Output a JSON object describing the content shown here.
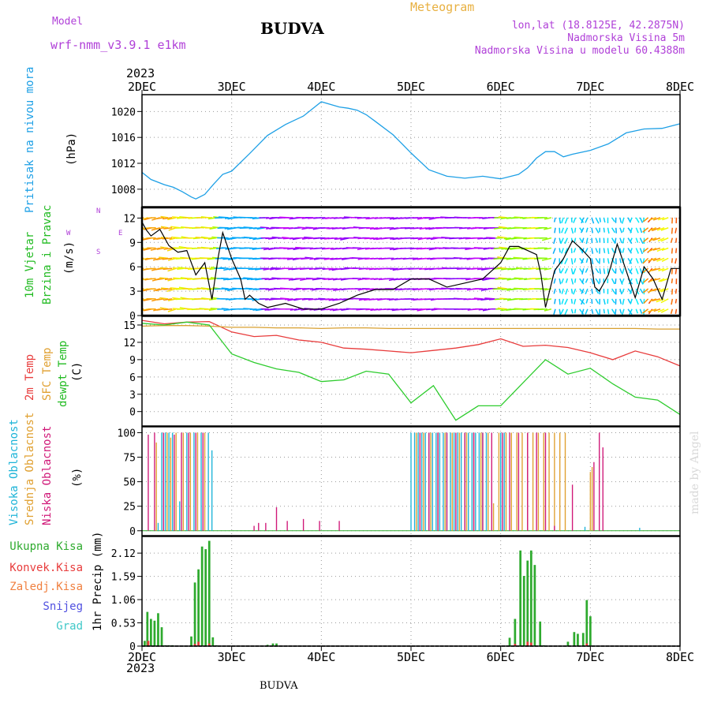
{
  "header": {
    "model_label": "Model",
    "model_name": "wrf-nmm_v3.9.1  e1km",
    "station": "BUDVA",
    "meteogram": "Meteogram",
    "lonlat": "lon,lat (18.8125E, 42.2875N)",
    "elevation": "Nadmorska Visina 5m",
    "model_elevation": "Nadmorska Visina u modelu 60.4388m",
    "year": "2023",
    "footer_station": "BUDVA",
    "watermark": "made by Angel"
  },
  "x_axis": {
    "ticks": [
      "2DEC",
      "3DEC",
      "4DEC",
      "5DEC",
      "6DEC",
      "7DEC",
      "8DEC"
    ],
    "year_bottom": "2023"
  },
  "colors": {
    "pressure": "#1ea0e6",
    "temp2m": "#e83c3c",
    "sfc_temp": "#d8a030",
    "dewpoint": "#2ecc2e",
    "high_cloud": "#1eb4d8",
    "mid_cloud": "#e0a030",
    "low_cloud": "#d01878",
    "total_precip": "#2eaa2e",
    "conv_precip": "#e83c3c"
  },
  "panels": {
    "pressure": {
      "label": "Pritisak na nivou mora",
      "unit": "(hPa)"
    },
    "wind": {
      "label1": "10m Vjetar",
      "label2": "Brzina i Pravac",
      "unit": "(m/s)",
      "compass_n": "N",
      "compass_s": "S",
      "compass_w": "W",
      "compass_e": "E"
    },
    "temp": {
      "label1": "2m Temp",
      "label2": "SFC Temp",
      "label3": "dewpt Temp",
      "unit": "(C)"
    },
    "cloud": {
      "label1": "Visoka Oblacnost",
      "label2": "Srednja Oblacnost",
      "label3": "Niska Oblacnost",
      "unit": "(%)"
    },
    "precip": {
      "unit": "1hr Precip (mm)",
      "legend": [
        "Ukupna Kisa",
        "Konvek.Kisa",
        "Zaledj.Kisa",
        "Snijeg",
        "Grad"
      ]
    }
  },
  "chart_data": [
    {
      "type": "line",
      "name": "pressure",
      "ylabel": "Pritisak na nivou mora (hPa)",
      "ylim": [
        1005.3,
        1022.6
      ],
      "yticks": [
        1008,
        1012,
        1016,
        1020
      ],
      "x": [
        0,
        0.1,
        0.25,
        0.35,
        0.45,
        0.55,
        0.6,
        0.7,
        0.8,
        0.9,
        1.0,
        1.2,
        1.4,
        1.6,
        1.8,
        2.0,
        2.2,
        2.3,
        2.4,
        2.5,
        2.6,
        2.8,
        3.0,
        3.2,
        3.4,
        3.6,
        3.8,
        4.0,
        4.2,
        4.3,
        4.4,
        4.5,
        4.6,
        4.7,
        4.8,
        5.0,
        5.2,
        5.4,
        5.6,
        5.8,
        6.0
      ],
      "values": [
        1010.6,
        1009.5,
        1008.7,
        1008.3,
        1007.6,
        1006.8,
        1006.5,
        1007.2,
        1008.8,
        1010.3,
        1010.8,
        1013.5,
        1016.3,
        1018.0,
        1019.3,
        1021.5,
        1020.7,
        1020.5,
        1020.2,
        1019.5,
        1018.5,
        1016.4,
        1013.6,
        1011.0,
        1010.0,
        1009.7,
        1010.0,
        1009.6,
        1010.3,
        1011.3,
        1012.8,
        1013.8,
        1013.8,
        1013.0,
        1013.4,
        1014.0,
        1015.0,
        1016.7,
        1017.3,
        1017.4,
        1018.1
      ]
    },
    {
      "type": "line",
      "name": "wind",
      "ylabel": "10m Vjetar Brzina i Pravac (m/s)",
      "ylim": [
        0,
        13.3
      ],
      "yticks": [
        0,
        3,
        6,
        9,
        12
      ],
      "x": [
        0,
        0.05,
        0.1,
        0.2,
        0.3,
        0.4,
        0.5,
        0.6,
        0.7,
        0.78,
        0.85,
        0.9,
        1.0,
        1.1,
        1.15,
        1.2,
        1.3,
        1.4,
        1.6,
        1.8,
        2.0,
        2.2,
        2.4,
        2.6,
        2.8,
        3.0,
        3.2,
        3.4,
        3.6,
        3.8,
        4.0,
        4.1,
        4.2,
        4.3,
        4.4,
        4.45,
        4.5,
        4.6,
        4.7,
        4.8,
        4.9,
        5.0,
        5.05,
        5.1,
        5.2,
        5.3,
        5.4,
        5.5,
        5.6,
        5.7,
        5.8,
        5.9,
        6.0
      ],
      "values": [
        11.5,
        10.5,
        9.8,
        10.6,
        8.6,
        7.8,
        8.0,
        5.0,
        6.5,
        2.0,
        7.2,
        10.2,
        7.0,
        4.5,
        2.0,
        2.5,
        1.5,
        1.0,
        1.5,
        0.8,
        0.8,
        1.5,
        2.5,
        3.2,
        3.2,
        4.5,
        4.5,
        3.5,
        4.0,
        4.5,
        6.5,
        8.5,
        8.5,
        8.0,
        7.5,
        5.0,
        1.0,
        5.5,
        7.0,
        9.2,
        8.2,
        7.0,
        3.5,
        3.0,
        5.0,
        8.8,
        5.5,
        2.2,
        6.0,
        4.5,
        2.0,
        5.8,
        5.8
      ]
    },
    {
      "type": "line",
      "name": "temperature",
      "ylabel": "2m Temp, SFC Temp, dewpt Temp (C)",
      "ylim": [
        -2.5,
        16.5
      ],
      "yticks": [
        0,
        3,
        6,
        9,
        12,
        15
      ],
      "x": [
        0,
        0.25,
        0.5,
        0.75,
        1.0,
        1.25,
        1.5,
        1.75,
        2.0,
        2.25,
        2.5,
        2.75,
        3.0,
        3.25,
        3.5,
        3.75,
        4.0,
        4.25,
        4.5,
        4.75,
        5.0,
        5.25,
        5.5,
        5.75,
        6.0
      ],
      "series": [
        {
          "name": "2m Temp",
          "values": [
            15.8,
            15.2,
            15.5,
            15.6,
            13.8,
            13.0,
            13.2,
            12.4,
            12.0,
            11.0,
            10.8,
            10.5,
            10.2,
            10.6,
            11.0,
            11.6,
            12.6,
            11.3,
            11.5,
            11.1,
            10.2,
            9.0,
            10.5,
            9.5,
            7.9
          ]
        },
        {
          "name": "SFC Temp",
          "values": [
            14.8,
            14.9,
            14.9,
            14.8,
            14.6,
            14.6,
            14.5,
            14.5,
            14.4,
            14.5,
            14.5,
            14.4,
            14.4,
            14.4,
            14.4,
            14.4,
            14.4,
            14.4,
            14.4,
            14.4,
            14.4,
            14.4,
            14.4,
            14.3,
            14.3
          ]
        },
        {
          "name": "dewpt Temp",
          "values": [
            15.3,
            15.0,
            15.5,
            15.0,
            10.0,
            8.5,
            7.4,
            6.8,
            5.2,
            5.5,
            7.0,
            6.5,
            1.5,
            4.5,
            -1.5,
            1.0,
            1.0,
            5.0,
            9.0,
            6.5,
            7.5,
            4.8,
            2.5,
            2.0,
            -0.5
          ]
        }
      ]
    },
    {
      "type": "bar",
      "name": "cloud_cover",
      "ylabel": "Visoka / Srednja / Niska Oblacnost (%)",
      "ylim": [
        -5,
        106
      ],
      "yticks": [
        0,
        25,
        50,
        75,
        100
      ],
      "bar_width": 0.012,
      "series": [
        {
          "name": "Visoka Oblacnost",
          "x": [
            0.18,
            0.22,
            0.26,
            0.3,
            0.34,
            0.42,
            0.5,
            0.58,
            0.66,
            0.74,
            0.78,
            3.0,
            3.04,
            3.08,
            3.12,
            3.16,
            3.2,
            3.24,
            3.28,
            3.32,
            3.36,
            3.4,
            3.44,
            3.48,
            3.52,
            3.56,
            3.6,
            3.64,
            3.68,
            3.72,
            3.76,
            3.8,
            3.84,
            4.0,
            4.04,
            4.94,
            5.0,
            5.55
          ],
          "values": [
            8,
            100,
            100,
            100,
            100,
            30,
            100,
            100,
            100,
            100,
            82,
            100,
            100,
            100,
            100,
            100,
            100,
            100,
            100,
            100,
            100,
            100,
            100,
            100,
            100,
            100,
            100,
            100,
            100,
            100,
            100,
            100,
            100,
            100,
            100,
            4,
            3,
            3
          ]
        },
        {
          "name": "Srednja Oblacnost",
          "x": [
            0.16,
            0.28,
            0.32,
            0.38,
            0.46,
            0.54,
            0.62,
            0.7,
            3.06,
            3.14,
            3.22,
            3.3,
            3.38,
            3.46,
            3.54,
            3.62,
            3.7,
            3.78,
            3.86,
            3.92,
            3.98,
            4.06,
            4.12,
            4.18,
            4.24,
            4.3,
            4.36,
            4.42,
            4.48,
            4.54,
            4.6,
            4.66,
            4.72,
            5.0,
            5.02
          ],
          "values": [
            90,
            100,
            95,
            100,
            100,
            100,
            100,
            100,
            100,
            100,
            100,
            100,
            100,
            100,
            100,
            100,
            100,
            100,
            100,
            28,
            100,
            100,
            100,
            100,
            100,
            100,
            100,
            100,
            100,
            100,
            100,
            100,
            100,
            60,
            65
          ]
        },
        {
          "name": "Niska Oblacnost",
          "x": [
            0.07,
            0.14,
            0.24,
            0.36,
            0.44,
            0.52,
            0.6,
            0.68,
            1.25,
            1.3,
            1.38,
            1.5,
            1.62,
            1.8,
            1.98,
            2.2,
            3.1,
            3.2,
            3.3,
            3.4,
            3.5,
            3.6,
            3.7,
            3.8,
            3.9,
            4.02,
            4.1,
            4.2,
            4.3,
            4.4,
            4.5,
            4.6,
            4.8,
            5.04,
            5.1,
            5.14
          ],
          "values": [
            98,
            100,
            100,
            98,
            100,
            100,
            100,
            100,
            5,
            8,
            8,
            24,
            10,
            12,
            10,
            10,
            100,
            100,
            100,
            100,
            100,
            100,
            100,
            100,
            100,
            100,
            100,
            100,
            100,
            100,
            100,
            5,
            47,
            70,
            100,
            85
          ]
        }
      ]
    },
    {
      "type": "bar",
      "name": "precipitation",
      "ylabel": "1hr Precip (mm)",
      "ylim": [
        0,
        2.5
      ],
      "yticks": [
        0,
        0.53,
        1.06,
        1.59,
        2.12
      ],
      "bar_width": 0.024,
      "series": [
        {
          "name": "Ukupna Kisa",
          "x": [
            0.03,
            0.06,
            0.1,
            0.14,
            0.18,
            0.22,
            0.26,
            0.3,
            0.34,
            0.55,
            0.59,
            0.63,
            0.67,
            0.71,
            0.75,
            0.79,
            0.83,
            1.4,
            1.46,
            1.5,
            4.1,
            4.16,
            4.22,
            4.26,
            4.3,
            4.34,
            4.38,
            4.44,
            4.48,
            4.75,
            4.82,
            4.86,
            4.92,
            4.96,
            5.0
          ],
          "values": [
            0.12,
            0.78,
            0.62,
            0.58,
            0.75,
            0.43,
            0.02,
            0.02,
            0.02,
            0.22,
            1.45,
            1.75,
            2.27,
            2.21,
            2.4,
            0.2,
            0.02,
            0.03,
            0.06,
            0.06,
            0.19,
            0.62,
            2.18,
            1.6,
            1.95,
            2.18,
            1.85,
            0.56,
            0.02,
            0.1,
            0.32,
            0.28,
            0.3,
            1.05,
            0.68
          ]
        },
        {
          "name": "Konvek.Kisa",
          "x": [
            0.07,
            0.59,
            0.63,
            0.75,
            4.16,
            4.3,
            4.34,
            4.96
          ],
          "values": [
            0.12,
            0.05,
            0.1,
            0.06,
            0.05,
            0.1,
            0.08,
            0.06
          ]
        }
      ]
    }
  ]
}
